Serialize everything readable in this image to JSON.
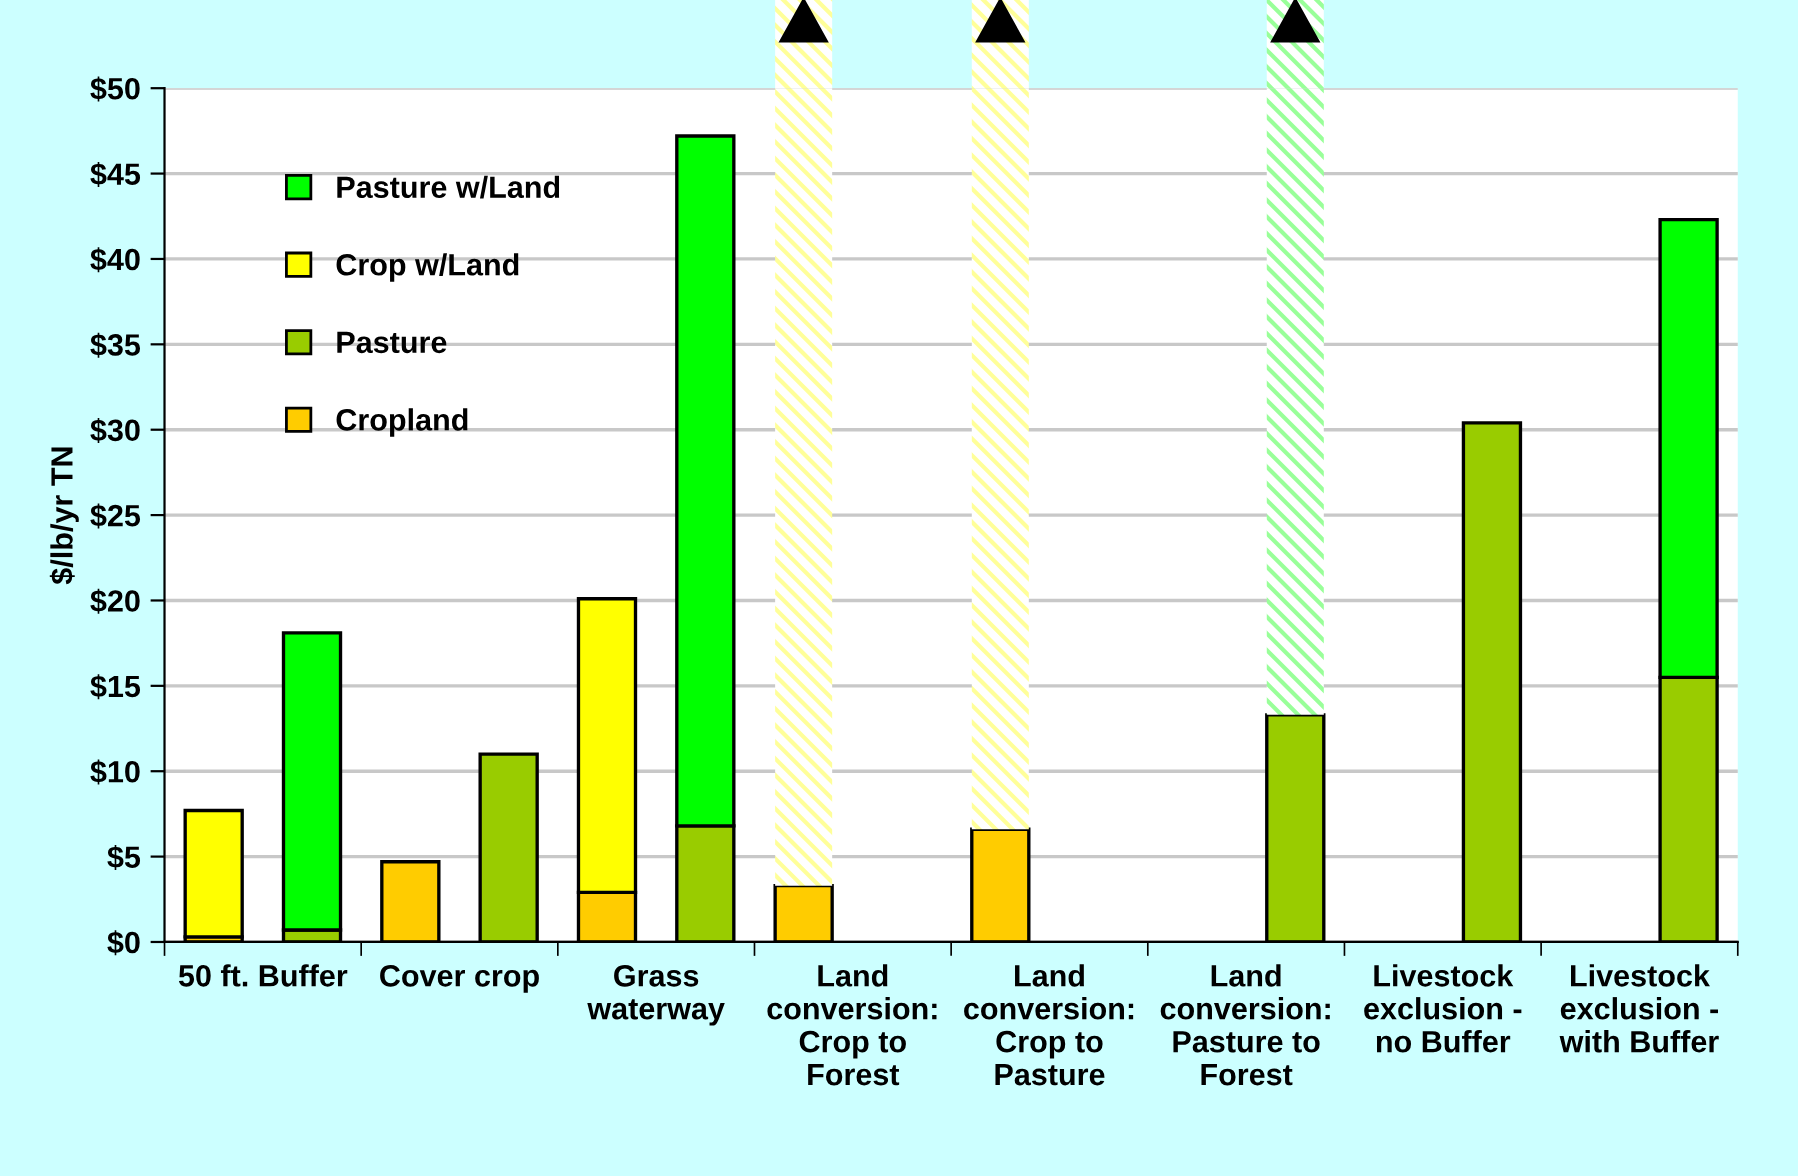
{
  "chart_data": {
    "type": "bar",
    "stacked": true,
    "ylabel": "$/lb/yr TN",
    "categories": [
      "50 ft. Buffer",
      null,
      "Cover crop",
      null,
      "Grass\nwaterway",
      null,
      "Land\nconversion:\nCrop to\nForest",
      null,
      "Land\nconversion:\nCrop to\nPasture",
      null,
      "Land\nconversion:\nPasture to\nForest",
      null,
      "Livestock\nexclusion -\nno Buffer",
      null,
      "Livestock\nexclusion -\nwith Buffer",
      null
    ],
    "series": [
      {
        "name": "Cropland",
        "color": "#ffcc00",
        "values": [
          0.3,
          null,
          4.7,
          null,
          2.9,
          null,
          3.3,
          null,
          6.6,
          null,
          null,
          null,
          null,
          null,
          null,
          null
        ]
      },
      {
        "name": "Pasture",
        "color": "#99cc00",
        "values": [
          null,
          0.7,
          null,
          11.0,
          null,
          6.8,
          null,
          null,
          null,
          null,
          null,
          13.3,
          null,
          30.4,
          null,
          15.5
        ]
      },
      {
        "name": "Crop w/Land",
        "color": "#ffff00",
        "colors": [
          "#ffff00",
          null,
          null,
          null,
          "#ffff00",
          null,
          "#ffff99",
          null,
          "#ffff99",
          null,
          null,
          null,
          null,
          null,
          null,
          null
        ],
        "values": [
          7.4,
          null,
          null,
          null,
          17.2,
          null,
          46.7,
          null,
          43.4,
          null,
          null,
          null,
          null,
          null,
          null,
          null
        ]
      },
      {
        "name": "Pasture w/Land",
        "color": "#00ff00",
        "colors": [
          null,
          "#00ff00",
          null,
          null,
          null,
          "#00ff00",
          null,
          null,
          null,
          null,
          null,
          "#99ff99",
          null,
          null,
          null,
          "#00ff00"
        ],
        "values": [
          null,
          17.4,
          null,
          null,
          null,
          40.4,
          null,
          null,
          null,
          null,
          null,
          36.7,
          null,
          null,
          null,
          26.8
        ]
      }
    ],
    "ylim": [
      0,
      50
    ],
    "yticks": [
      {
        "value": 0,
        "label": "$0"
      },
      {
        "value": 5,
        "label": "$5"
      },
      {
        "value": 10,
        "label": "$10"
      },
      {
        "value": 15,
        "label": "$15"
      },
      {
        "value": 20,
        "label": "$20"
      },
      {
        "value": 25,
        "label": "$25"
      },
      {
        "value": 30,
        "label": "$30"
      },
      {
        "value": 35,
        "label": "$35"
      },
      {
        "value": 40,
        "label": "$40"
      },
      {
        "value": 45,
        "label": "$45"
      },
      {
        "value": 50,
        "label": "$50"
      }
    ],
    "grid": "y",
    "legend": "top left"
  }
}
